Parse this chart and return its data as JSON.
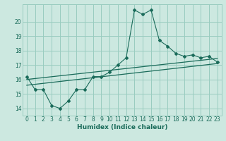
{
  "xlabel": "Humidex (Indice chaleur)",
  "bg_color": "#cce8e0",
  "grid_color": "#99ccbf",
  "line_color": "#1a6b5a",
  "xlim": [
    -0.5,
    23.5
  ],
  "ylim": [
    13.5,
    21.2
  ],
  "xticks": [
    0,
    1,
    2,
    3,
    4,
    5,
    6,
    7,
    8,
    9,
    10,
    11,
    12,
    13,
    14,
    15,
    16,
    17,
    18,
    19,
    20,
    21,
    22,
    23
  ],
  "yticks": [
    14,
    15,
    16,
    17,
    18,
    19,
    20
  ],
  "line1_x": [
    0,
    1,
    2,
    3,
    4,
    5,
    6,
    7,
    8,
    9,
    10,
    11,
    12,
    13,
    14,
    15,
    16,
    17,
    18,
    19,
    20,
    21,
    22,
    23
  ],
  "line1_y": [
    16.2,
    15.3,
    15.3,
    14.2,
    14.0,
    14.5,
    15.3,
    15.3,
    16.2,
    16.2,
    16.5,
    17.0,
    17.5,
    20.8,
    20.5,
    20.8,
    18.7,
    18.3,
    17.8,
    17.6,
    17.7,
    17.5,
    17.6,
    17.2
  ],
  "line2_x": [
    0,
    23
  ],
  "line2_y": [
    15.6,
    17.1
  ],
  "line3_x": [
    0,
    23
  ],
  "line3_y": [
    16.0,
    17.45
  ]
}
